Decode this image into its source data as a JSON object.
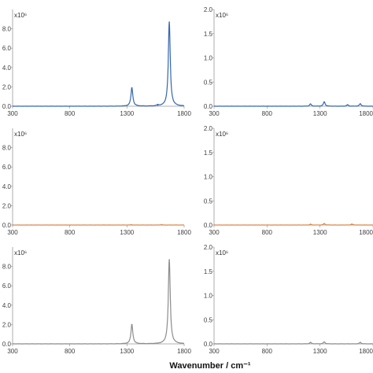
{
  "figure": {
    "xlabel": "Wavenumber / cm⁻¹"
  },
  "chart_data": [
    {
      "type": "line",
      "panel": "top-left",
      "x_ticks": [
        "300",
        "800",
        "1300",
        "1800"
      ],
      "xlim": [
        300,
        1800
      ],
      "y_ticks": [
        "0.0",
        "2.0",
        "4.0",
        "6.0",
        "8.0"
      ],
      "ylim": [
        0,
        10
      ],
      "y_multiplier": "x10⁶",
      "x_tick_labels_shown": true,
      "color": "#3366b0",
      "series": [
        {
          "peaks": [
            {
              "x": 1343,
              "y": 1.9
            },
            {
              "x": 1670,
              "y": 8.7
            },
            {
              "x": 1570,
              "y": 0.1
            }
          ]
        }
      ]
    },
    {
      "type": "line",
      "panel": "top-right",
      "x_ticks": [
        "300",
        "800",
        "1300",
        "1800"
      ],
      "xlim": [
        300,
        1800
      ],
      "y_ticks": [
        "0.0",
        "0.5",
        "1.0",
        "1.5",
        "2.0"
      ],
      "ylim": [
        0,
        2
      ],
      "y_multiplier": "x10⁶",
      "x_tick_labels_shown": true,
      "color": "#3366b0",
      "series": [
        {
          "peaks": [
            {
              "x": 1210,
              "y": 0.045
            },
            {
              "x": 1340,
              "y": 0.09
            },
            {
              "x": 1560,
              "y": 0.03
            },
            {
              "x": 1680,
              "y": 0.05
            }
          ]
        }
      ]
    },
    {
      "type": "line",
      "panel": "middle-left",
      "x_ticks": [
        "300",
        "800",
        "1300",
        "1800"
      ],
      "xlim": [
        300,
        1800
      ],
      "y_ticks": [
        "0.0",
        "2.0",
        "4.0",
        "6.0",
        "8.0"
      ],
      "ylim": [
        0,
        10
      ],
      "y_multiplier": "x10⁶",
      "x_tick_labels_shown": true,
      "color": "#d9884a",
      "series": [
        {
          "peaks": [
            {
              "x": 1340,
              "y": 0.03
            },
            {
              "x": 1600,
              "y": 0.04
            }
          ]
        }
      ]
    },
    {
      "type": "line",
      "panel": "middle-right",
      "x_ticks": [
        "300",
        "800",
        "1300",
        "1800"
      ],
      "xlim": [
        300,
        1800
      ],
      "y_ticks": [
        "0.0",
        "0.5",
        "1.0",
        "1.5",
        "2.0"
      ],
      "ylim": [
        0,
        2
      ],
      "y_multiplier": "x10⁶",
      "x_tick_labels_shown": true,
      "color": "#d9884a",
      "series": [
        {
          "peaks": [
            {
              "x": 1340,
              "y": 0.03
            },
            {
              "x": 1210,
              "y": 0.015
            },
            {
              "x": 1600,
              "y": 0.02
            }
          ]
        }
      ]
    },
    {
      "type": "line",
      "panel": "bottom-left",
      "x_ticks": [
        "300",
        "800",
        "1300",
        "1800"
      ],
      "xlim": [
        300,
        1800
      ],
      "y_ticks": [
        "0.0",
        "2.0",
        "4.0",
        "6.0",
        "8.0"
      ],
      "ylim": [
        0,
        10
      ],
      "y_multiplier": "x10⁶",
      "x_tick_labels_shown": true,
      "color": "#8c8c8c",
      "series": [
        {
          "peaks": [
            {
              "x": 1343,
              "y": 2.0
            },
            {
              "x": 1670,
              "y": 8.7
            }
          ]
        }
      ]
    },
    {
      "type": "line",
      "panel": "bottom-right",
      "x_ticks": [
        "300",
        "800",
        "1300",
        "1800"
      ],
      "xlim": [
        300,
        1800
      ],
      "y_ticks": [
        "0.0",
        "0.5",
        "1.0",
        "1.5",
        "2.0"
      ],
      "ylim": [
        0,
        2
      ],
      "y_multiplier": "x10⁶",
      "x_tick_labels_shown": true,
      "color": "#8c8c8c",
      "series": [
        {
          "peaks": [
            {
              "x": 1210,
              "y": 0.03
            },
            {
              "x": 1340,
              "y": 0.04
            },
            {
              "x": 1680,
              "y": 0.03
            }
          ]
        }
      ]
    }
  ]
}
